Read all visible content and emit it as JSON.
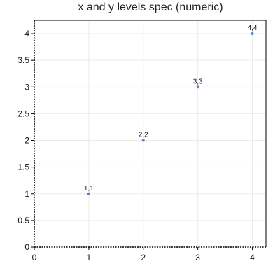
{
  "chart_data": {
    "type": "scatter",
    "title": "x and y levels spec (numeric)",
    "xlabel": "",
    "ylabel": "",
    "xlim": [
      0,
      4.25
    ],
    "ylim": [
      0,
      4.25
    ],
    "x_ticks": [
      0,
      1,
      2,
      3,
      4
    ],
    "y_ticks": [
      0,
      0.5,
      1,
      1.5,
      2,
      2.5,
      3,
      3.5,
      4
    ],
    "grid": true,
    "legend": "none",
    "point_color": "#4e86c6",
    "series": [
      {
        "points": [
          {
            "x": 1,
            "y": 1,
            "label": "1,1"
          },
          {
            "x": 2,
            "y": 2,
            "label": "2,2"
          },
          {
            "x": 3,
            "y": 3,
            "label": "3,3"
          },
          {
            "x": 4,
            "y": 4,
            "label": "4,4"
          }
        ]
      }
    ]
  }
}
